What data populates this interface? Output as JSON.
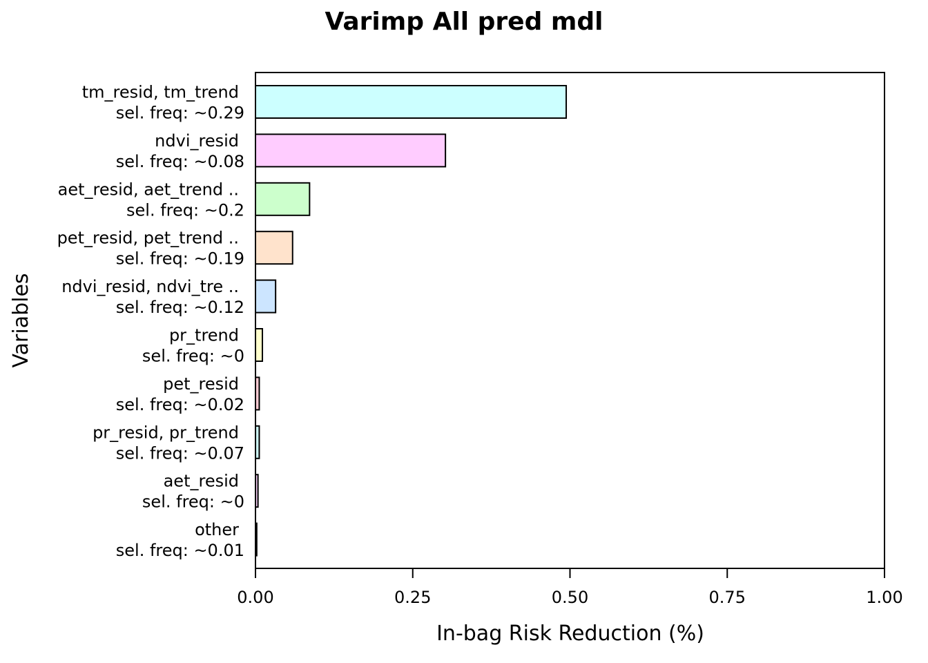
{
  "chart_data": {
    "type": "bar",
    "orientation": "horizontal",
    "title": "Varimp All pred mdl",
    "xlabel": "In-bag Risk Reduction (%)",
    "ylabel": "Variables",
    "xlim": [
      0,
      1
    ],
    "xticks": [
      "0.00",
      "0.25",
      "0.50",
      "0.75",
      "1.00"
    ],
    "tick_values": [
      0,
      0.25,
      0.5,
      0.75,
      1.0
    ],
    "grid": false,
    "bars": [
      {
        "label": "tm_resid, tm_trend",
        "freq": "sel. freq: ~0.29",
        "value": 0.494,
        "color": "#ccffff"
      },
      {
        "label": "ndvi_resid",
        "freq": "sel. freq: ~0.08",
        "value": 0.302,
        "color": "#ffccff"
      },
      {
        "label": "aet_resid, aet_trend ..",
        "freq": "sel. freq: ~0.2",
        "value": 0.086,
        "color": "#ccffcc"
      },
      {
        "label": "pet_resid, pet_trend ..",
        "freq": "sel. freq: ~0.19",
        "value": 0.059,
        "color": "#ffe3cc"
      },
      {
        "label": "ndvi_resid, ndvi_tre ..",
        "freq": "sel. freq: ~0.12",
        "value": 0.032,
        "color": "#cce5ff"
      },
      {
        "label": "pr_trend",
        "freq": "sel. freq: ~0",
        "value": 0.011,
        "color": "#ffffcc"
      },
      {
        "label": "pet_resid",
        "freq": "sel. freq: ~0.02",
        "value": 0.006,
        "color": "#ffccd4"
      },
      {
        "label": "pr_resid, pr_trend",
        "freq": "sel. freq: ~0.07",
        "value": 0.006,
        "color": "#ccf3f3"
      },
      {
        "label": "aet_resid",
        "freq": "sel. freq: ~0",
        "value": 0.004,
        "color": "#f3ccf3"
      },
      {
        "label": "other",
        "freq": "sel. freq: ~0.01",
        "value": 0.002,
        "color": "#ccf3cc"
      }
    ]
  }
}
